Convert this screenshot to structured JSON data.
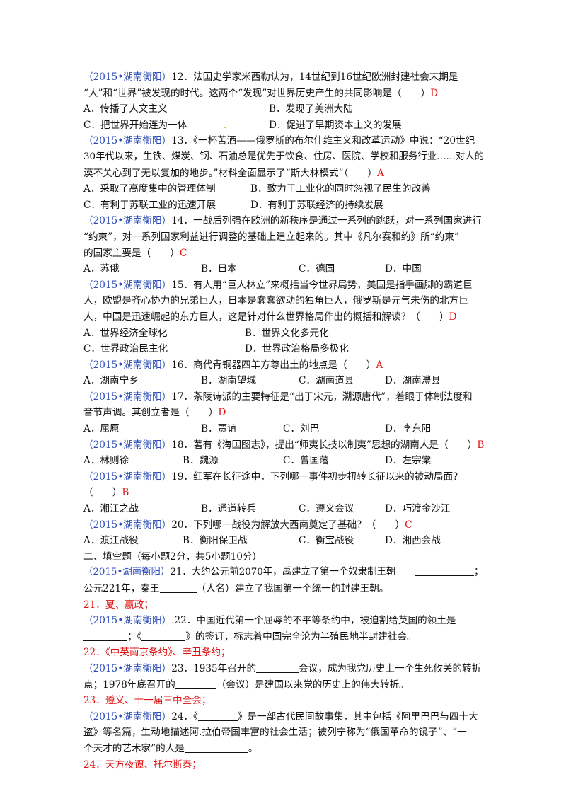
{
  "q12": {
    "src": "（2015•湖南衡阳）",
    "l1": "12．法国史学家米西勒认为，14世纪到16世纪欧洲封建社会末期是",
    "l2": "“人”和“世界”被发现的时代。这两个“发现”对世界历史产生的共同影响是（　　）",
    "ans": "D",
    "a": "A．传播了人文主义",
    "b": "B．发现了美洲大陆",
    "c": "C．把世界开始连为一体",
    "d": "D．促进了早期资本主义的发展"
  },
  "q13": {
    "src": "（2015•湖南衡阳）",
    "l1": "13．《一杯苦酒——俄罗斯的布尔什维主义和改革运动》中说：“20世纪",
    "l2": "30年代以来，生铁、煤炭、钢、石油总是优先于饮食、住房、医院、学校和服务行业……对人的",
    "l3": "漠不关心到了无以复加的地步。”材料全面显示了“斯大林模式”（　　）",
    "ans": "A",
    "a": "A．采取了高度集中的管理体制",
    "b": "B．致力于工业化的同时忽视了民生的改善",
    "c": "C．有利于苏联工业的迅速开展",
    "d": "D．有利于苏联经济的持续发展"
  },
  "q14": {
    "src": "（2015•湖南衡阳）",
    "l1": "14．一战后列强在欧洲的新秩序是通过一系列的跳跃，对一系列国家进行",
    "l2": "“约束”，对一系列国家利益进行调整的基础上建立起来的。其中《凡尔赛和约》所“约束”",
    "l3": "的国家主要是（　　）",
    "ans": "C",
    "a": "A．苏俄",
    "b": "B．日本",
    "c": "C．德国",
    "d": "D．中国"
  },
  "q15": {
    "src": "（2015•湖南衡阳）",
    "l1": "15．有人用“巨人林立”来概括当今世界局势，美国是指手画脚的霸道巨",
    "l2": "人，欧盟是齐心协力的兄弟巨人，日本是蠢蠢欲动的独角巨人，俄罗斯是元气未伤的北方巨",
    "l3": "人，中国是迅速崛起的东方巨人，这是针对什么世界格局作出的概括和解读？（　　）",
    "ans": "D",
    "a": "A．世界经济全球化",
    "b": "B．世界文化多元化",
    "c": "C．世界政治民主化",
    "d": "D．世界政治格局多极化"
  },
  "q16": {
    "src": "（2015•湖南衡阳）",
    "l1": "16．商代青铜器四羊方尊出土的地点是（　　）",
    "ans": "A",
    "a": "A．湖南宁乡",
    "b": "B．湖南望城",
    "c": "C．湖南道县",
    "d": "D．湖南澧县"
  },
  "q17": {
    "src": "（2015•湖南衡阳）",
    "l1": "17．茶陵诗派的主要特征是“出于宋元，溯源唐代”，着眼于体制法度和",
    "l2": "音节声调。其创立者是（　　）",
    "ans": "D",
    "a": "A．屈原",
    "b": "B．贾谊",
    "c": "C．刘巴",
    "d": "D．李东阳"
  },
  "q18": {
    "src": "（2015•湖南衡阳）",
    "l1": "18．著有《海国图志》，提出“师夷长技以制夷”思想的湖南人是（　　）",
    "ans": "B",
    "a": "A．林则徐",
    "b": "B．魏源",
    "c": "C．曾国藩",
    "d": "D．左宗棠"
  },
  "q19": {
    "src": "（2015•湖南衡阳）",
    "l1": "19．红军在长征途中，下列哪一事件初步扭转长征以来的被动局面？",
    "l2": "（　　）",
    "ans": "B",
    "a": "A．湘江之战",
    "b": "B．通道转兵",
    "c": "C．遵义会议",
    "d": "D．巧渡金沙江"
  },
  "q20": {
    "src": "（2015•湖南衡阳）",
    "l1": "20．下列哪一战役为解放大西南奠定了基础？（　　）",
    "ans": "C",
    "a": "A．渡江战役",
    "b": "B．衡阳保卫战",
    "c": "C．衡宝战役",
    "d": "D．湘西会战"
  },
  "section2": "二、填空题（每小题2分，共5小题10分）",
  "q21": {
    "src": "（2015•湖南衡阳）",
    "l1": "21．大约公元前2070年，禹建立了第一个奴隶制王朝——",
    "l1end": "；",
    "l2a": "公元221年，秦王",
    "l2b": "（人名）建立了我国第一个统一的封建王朝。",
    "ans": "21．夏、嬴政；"
  },
  "q22": {
    "src": "（2015•湖南衡阳）",
    "l1": ".22．中国近代第一个屈辱的不平等条约中，被迫割给英国的领土是",
    "l2a": "；《",
    "l2b": "》的签订，标志着中国完全沦为半殖民地半封建社会。",
    "ans": "22．《中英南京条约》、辛丑条约；"
  },
  "q23": {
    "src": "（2015•湖南衡阳）",
    "l1a": "23．1935年召开的",
    "l1b": "会议，成为我党历史上一个生死攸关的转折",
    "l2a": "点；1978年底召开的",
    "l2b": "（会议）是建国以来党的历史上的伟大转折。",
    "ans": "23．遵义、十一届三中全会；"
  },
  "q24": {
    "src": "（2015•湖南衡阳）",
    "l1a": "24．《",
    "l1b": "》是一部古代民间故事集，其中包括《阿里巴巴与四十大",
    "l2": "盗》等名篇，生动地描述阿.拉伯帝国丰富的社会生活；被列宁称为“俄国革命的镜子”、“一",
    "l3a": "个天才的艺术家”的人是",
    "l3b": "。",
    "ans": "24．天方夜谭、托尔斯泰；"
  }
}
